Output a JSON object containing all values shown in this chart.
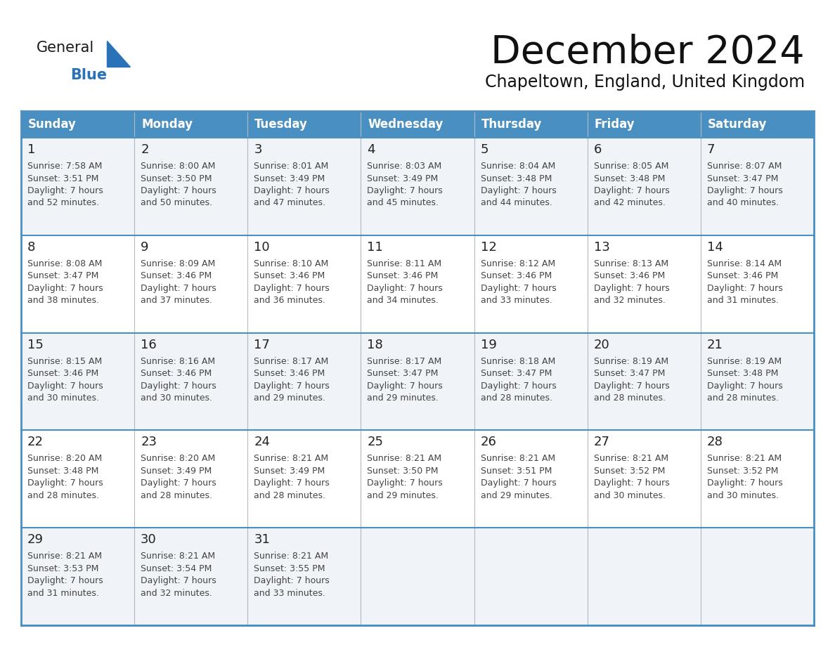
{
  "title": "December 2024",
  "subtitle": "Chapeltown, England, United Kingdom",
  "days_of_week": [
    "Sunday",
    "Monday",
    "Tuesday",
    "Wednesday",
    "Thursday",
    "Friday",
    "Saturday"
  ],
  "header_bg": "#4a8fc1",
  "header_text": "#ffffff",
  "row_bg_light": "#f0f4f8",
  "row_bg_white": "#ffffff",
  "border_color": "#4a8fc1",
  "sep_color": "#4a8fc1",
  "day_num_color": "#222222",
  "text_color": "#444444",
  "title_color": "#111111",
  "subtitle_color": "#111111",
  "logo_general_color": "#1a1a1a",
  "logo_blue_color": "#2a72b8",
  "calendar_data": [
    [
      {
        "day": "1",
        "sunrise": "7:58 AM",
        "sunset": "3:51 PM",
        "daylight_line1": "Daylight: 7 hours",
        "daylight_line2": "and 52 minutes."
      },
      {
        "day": "2",
        "sunrise": "8:00 AM",
        "sunset": "3:50 PM",
        "daylight_line1": "Daylight: 7 hours",
        "daylight_line2": "and 50 minutes."
      },
      {
        "day": "3",
        "sunrise": "8:01 AM",
        "sunset": "3:49 PM",
        "daylight_line1": "Daylight: 7 hours",
        "daylight_line2": "and 47 minutes."
      },
      {
        "day": "4",
        "sunrise": "8:03 AM",
        "sunset": "3:49 PM",
        "daylight_line1": "Daylight: 7 hours",
        "daylight_line2": "and 45 minutes."
      },
      {
        "day": "5",
        "sunrise": "8:04 AM",
        "sunset": "3:48 PM",
        "daylight_line1": "Daylight: 7 hours",
        "daylight_line2": "and 44 minutes."
      },
      {
        "day": "6",
        "sunrise": "8:05 AM",
        "sunset": "3:48 PM",
        "daylight_line1": "Daylight: 7 hours",
        "daylight_line2": "and 42 minutes."
      },
      {
        "day": "7",
        "sunrise": "8:07 AM",
        "sunset": "3:47 PM",
        "daylight_line1": "Daylight: 7 hours",
        "daylight_line2": "and 40 minutes."
      }
    ],
    [
      {
        "day": "8",
        "sunrise": "8:08 AM",
        "sunset": "3:47 PM",
        "daylight_line1": "Daylight: 7 hours",
        "daylight_line2": "and 38 minutes."
      },
      {
        "day": "9",
        "sunrise": "8:09 AM",
        "sunset": "3:46 PM",
        "daylight_line1": "Daylight: 7 hours",
        "daylight_line2": "and 37 minutes."
      },
      {
        "day": "10",
        "sunrise": "8:10 AM",
        "sunset": "3:46 PM",
        "daylight_line1": "Daylight: 7 hours",
        "daylight_line2": "and 36 minutes."
      },
      {
        "day": "11",
        "sunrise": "8:11 AM",
        "sunset": "3:46 PM",
        "daylight_line1": "Daylight: 7 hours",
        "daylight_line2": "and 34 minutes."
      },
      {
        "day": "12",
        "sunrise": "8:12 AM",
        "sunset": "3:46 PM",
        "daylight_line1": "Daylight: 7 hours",
        "daylight_line2": "and 33 minutes."
      },
      {
        "day": "13",
        "sunrise": "8:13 AM",
        "sunset": "3:46 PM",
        "daylight_line1": "Daylight: 7 hours",
        "daylight_line2": "and 32 minutes."
      },
      {
        "day": "14",
        "sunrise": "8:14 AM",
        "sunset": "3:46 PM",
        "daylight_line1": "Daylight: 7 hours",
        "daylight_line2": "and 31 minutes."
      }
    ],
    [
      {
        "day": "15",
        "sunrise": "8:15 AM",
        "sunset": "3:46 PM",
        "daylight_line1": "Daylight: 7 hours",
        "daylight_line2": "and 30 minutes."
      },
      {
        "day": "16",
        "sunrise": "8:16 AM",
        "sunset": "3:46 PM",
        "daylight_line1": "Daylight: 7 hours",
        "daylight_line2": "and 30 minutes."
      },
      {
        "day": "17",
        "sunrise": "8:17 AM",
        "sunset": "3:46 PM",
        "daylight_line1": "Daylight: 7 hours",
        "daylight_line2": "and 29 minutes."
      },
      {
        "day": "18",
        "sunrise": "8:17 AM",
        "sunset": "3:47 PM",
        "daylight_line1": "Daylight: 7 hours",
        "daylight_line2": "and 29 minutes."
      },
      {
        "day": "19",
        "sunrise": "8:18 AM",
        "sunset": "3:47 PM",
        "daylight_line1": "Daylight: 7 hours",
        "daylight_line2": "and 28 minutes."
      },
      {
        "day": "20",
        "sunrise": "8:19 AM",
        "sunset": "3:47 PM",
        "daylight_line1": "Daylight: 7 hours",
        "daylight_line2": "and 28 minutes."
      },
      {
        "day": "21",
        "sunrise": "8:19 AM",
        "sunset": "3:48 PM",
        "daylight_line1": "Daylight: 7 hours",
        "daylight_line2": "and 28 minutes."
      }
    ],
    [
      {
        "day": "22",
        "sunrise": "8:20 AM",
        "sunset": "3:48 PM",
        "daylight_line1": "Daylight: 7 hours",
        "daylight_line2": "and 28 minutes."
      },
      {
        "day": "23",
        "sunrise": "8:20 AM",
        "sunset": "3:49 PM",
        "daylight_line1": "Daylight: 7 hours",
        "daylight_line2": "and 28 minutes."
      },
      {
        "day": "24",
        "sunrise": "8:21 AM",
        "sunset": "3:49 PM",
        "daylight_line1": "Daylight: 7 hours",
        "daylight_line2": "and 28 minutes."
      },
      {
        "day": "25",
        "sunrise": "8:21 AM",
        "sunset": "3:50 PM",
        "daylight_line1": "Daylight: 7 hours",
        "daylight_line2": "and 29 minutes."
      },
      {
        "day": "26",
        "sunrise": "8:21 AM",
        "sunset": "3:51 PM",
        "daylight_line1": "Daylight: 7 hours",
        "daylight_line2": "and 29 minutes."
      },
      {
        "day": "27",
        "sunrise": "8:21 AM",
        "sunset": "3:52 PM",
        "daylight_line1": "Daylight: 7 hours",
        "daylight_line2": "and 30 minutes."
      },
      {
        "day": "28",
        "sunrise": "8:21 AM",
        "sunset": "3:52 PM",
        "daylight_line1": "Daylight: 7 hours",
        "daylight_line2": "and 30 minutes."
      }
    ],
    [
      {
        "day": "29",
        "sunrise": "8:21 AM",
        "sunset": "3:53 PM",
        "daylight_line1": "Daylight: 7 hours",
        "daylight_line2": "and 31 minutes."
      },
      {
        "day": "30",
        "sunrise": "8:21 AM",
        "sunset": "3:54 PM",
        "daylight_line1": "Daylight: 7 hours",
        "daylight_line2": "and 32 minutes."
      },
      {
        "day": "31",
        "sunrise": "8:21 AM",
        "sunset": "3:55 PM",
        "daylight_line1": "Daylight: 7 hours",
        "daylight_line2": "and 33 minutes."
      },
      null,
      null,
      null,
      null
    ]
  ]
}
